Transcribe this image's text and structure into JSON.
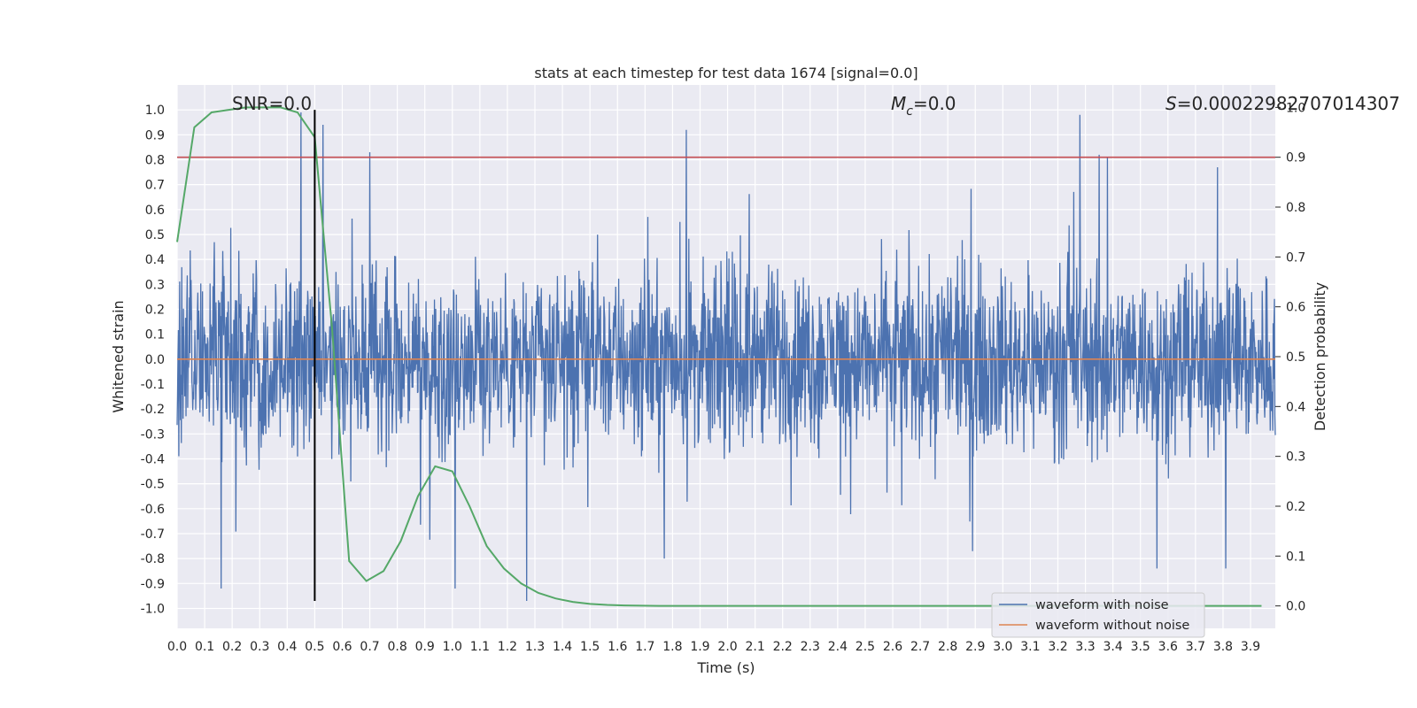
{
  "chart_data": {
    "type": "line",
    "title": "stats at each timestep for test data 1674 [signal=0.0]",
    "xlabel": "Time (s)",
    "ylabel_left": "Whitened strain",
    "ylabel_right": "Detection probability",
    "xlim": [
      0.0,
      3.99
    ],
    "ylim_left": [
      -1.08,
      1.1
    ],
    "ylim_right": [
      -0.045,
      1.045
    ],
    "xticks": [
      "0.0",
      "0.1",
      "0.2",
      "0.3",
      "0.4",
      "0.5",
      "0.6",
      "0.7",
      "0.8",
      "0.9",
      "1.0",
      "1.1",
      "1.2",
      "1.3",
      "1.4",
      "1.5",
      "1.6",
      "1.7",
      "1.8",
      "1.9",
      "2.0",
      "2.1",
      "2.2",
      "2.3",
      "2.4",
      "2.5",
      "2.6",
      "2.7",
      "2.8",
      "2.9",
      "3.0",
      "3.1",
      "3.2",
      "3.3",
      "3.4",
      "3.5",
      "3.6",
      "3.7",
      "3.8",
      "3.9"
    ],
    "yticks_left": [
      "1.0",
      "0.9",
      "0.8",
      "0.7",
      "0.6",
      "0.5",
      "0.4",
      "0.3",
      "0.2",
      "0.1",
      "0.0",
      "-0.1",
      "-0.2",
      "-0.3",
      "-0.4",
      "-0.5",
      "-0.6",
      "-0.7",
      "-0.8",
      "-0.9",
      "-1.0"
    ],
    "yticks_right": [
      "1.0",
      "0.9",
      "0.8",
      "0.7",
      "0.6",
      "0.5",
      "0.4",
      "0.3",
      "0.2",
      "0.1",
      "0.0"
    ],
    "grid": true,
    "legend_position": "lower-right",
    "annotations": {
      "snr": "SNR=0.0",
      "mc_symbol": "M",
      "mc_subscript": "c",
      "mc_value": "=0.0",
      "s_symbol": "S",
      "s_value": "=0.00022982707014307"
    },
    "threshold_line": {
      "axis": "right",
      "value": 0.9,
      "color": "#c44e52"
    },
    "marker_line": {
      "x": 0.5,
      "y_from": -0.97,
      "y_to": 1.0,
      "color": "#000000"
    },
    "series": [
      {
        "name": "waveform with noise",
        "color": "#4c72b0",
        "axis": "left",
        "description_note": "dense whitened noise trace, 0 to 4 s",
        "peaks": [
          [
            0.45,
            0.99
          ],
          [
            0.53,
            0.94
          ],
          [
            0.7,
            0.83
          ],
          [
            1.85,
            0.92
          ],
          [
            3.28,
            0.98
          ],
          [
            3.35,
            0.82
          ],
          [
            3.38,
            0.81
          ],
          [
            3.78,
            0.77
          ]
        ],
        "troughs": [
          [
            0.16,
            -0.92
          ],
          [
            1.01,
            -0.92
          ],
          [
            1.27,
            -0.97
          ],
          [
            3.56,
            -0.84
          ],
          [
            3.81,
            -0.84
          ],
          [
            2.89,
            -0.77
          ],
          [
            1.77,
            -0.8
          ]
        ]
      },
      {
        "name": "waveform without noise",
        "color": "#dd8452",
        "axis": "left",
        "x": [
          0.0,
          3.99
        ],
        "y": [
          0.0,
          0.0
        ]
      },
      {
        "name": "",
        "color": "#55a868",
        "axis": "right",
        "x": [
          0.0,
          0.0625,
          0.125,
          0.1875,
          0.25,
          0.3125,
          0.375,
          0.4375,
          0.5,
          0.5625,
          0.625,
          0.6875,
          0.75,
          0.8125,
          0.875,
          0.9375,
          1.0,
          1.0625,
          1.125,
          1.1875,
          1.25,
          1.3125,
          1.375,
          1.4375,
          1.5,
          1.5625,
          1.625,
          1.6875,
          1.75,
          1.8125,
          1.875,
          1.9375,
          2.0,
          2.5,
          3.0,
          3.5,
          3.94
        ],
        "y": [
          0.73,
          0.96,
          0.99,
          0.995,
          1.0,
          1.0,
          1.0,
          0.99,
          0.94,
          0.56,
          0.09,
          0.05,
          0.07,
          0.13,
          0.22,
          0.28,
          0.27,
          0.2,
          0.12,
          0.075,
          0.045,
          0.026,
          0.015,
          0.008,
          0.004,
          0.002,
          0.001,
          0.0005,
          0.0,
          0.0,
          0.0,
          0.0,
          0.0,
          0.0,
          0.0,
          0.0,
          0.0
        ]
      }
    ]
  }
}
